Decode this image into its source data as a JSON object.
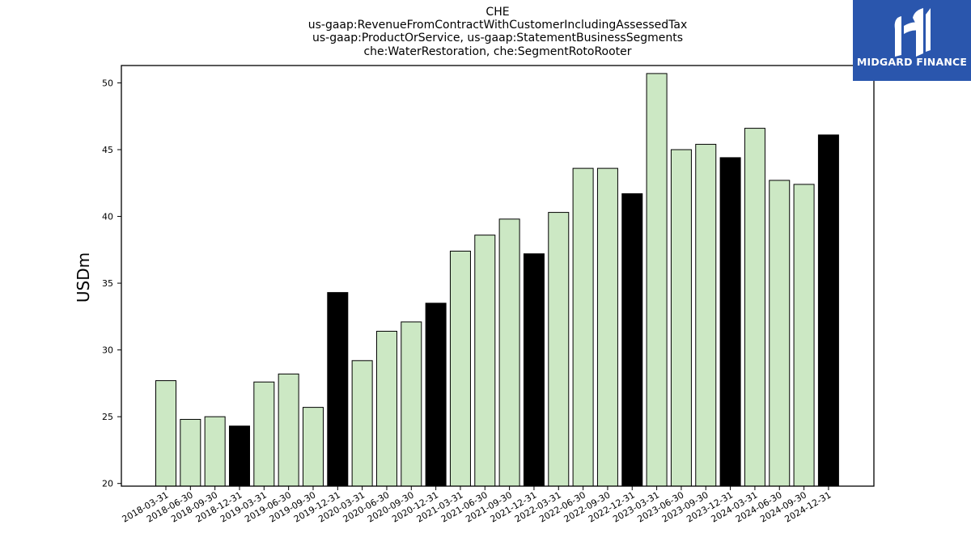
{
  "chart_data": {
    "type": "bar",
    "title": [
      "CHE",
      "us-gaap:RevenueFromContractWithCustomerIncludingAssessedTax",
      "us-gaap:ProductOrService, us-gaap:StatementBusinessSegments",
      "che:WaterRestoration, che:SegmentRotoRooter"
    ],
    "ylabel": "USDm",
    "xlabel": "",
    "ylim": [
      19.8,
      51.3
    ],
    "yticks": [
      20,
      25,
      30,
      35,
      40,
      45,
      50
    ],
    "categories": [
      "2018-03-31",
      "2018-06-30",
      "2018-09-30",
      "2018-12-31",
      "2019-03-31",
      "2019-06-30",
      "2019-09-30",
      "2019-12-31",
      "2020-03-31",
      "2020-06-30",
      "2020-09-30",
      "2020-12-31",
      "2021-03-31",
      "2021-06-30",
      "2021-09-30",
      "2021-12-31",
      "2022-03-31",
      "2022-06-30",
      "2022-09-30",
      "2022-12-31",
      "2023-03-31",
      "2023-06-30",
      "2023-09-30",
      "2023-12-31",
      "2024-03-31",
      "2024-06-30",
      "2024-09-30",
      "2024-12-31"
    ],
    "values": [
      27.7,
      24.8,
      25.0,
      24.3,
      27.6,
      28.2,
      25.7,
      34.3,
      29.2,
      31.4,
      32.1,
      33.5,
      37.4,
      38.6,
      39.8,
      37.2,
      40.3,
      43.6,
      43.6,
      41.7,
      50.7,
      45.0,
      45.4,
      44.4,
      46.6,
      42.7,
      42.4,
      46.1
    ],
    "colors": {
      "quarter": "#cce8c4",
      "year_end": "#000000",
      "edge": "#000000"
    }
  },
  "logo": {
    "text": "MIDGARD FINANCE",
    "background": "#2a56ad"
  }
}
